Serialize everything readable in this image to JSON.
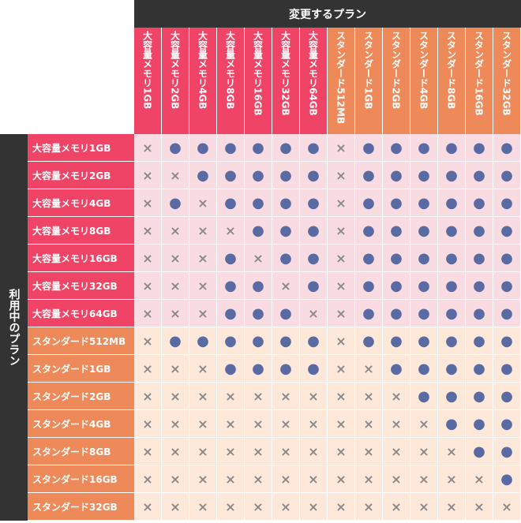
{
  "header": {
    "title": "変更するプラン",
    "side_title": "利用中のプラン"
  },
  "columns": [
    "大容量メモリ1GB",
    "大容量メモリ2GB",
    "大容量メモリ4GB",
    "大容量メモリ8GB",
    "大容量メモリ16GB",
    "大容量メモリ32GB",
    "大容量メモリ64GB",
    "スタンダード512MB",
    "スタンダード1GB",
    "スタンダード2GB",
    "スタンダード4GB",
    "スタンダード8GB",
    "スタンダード16GB",
    "スタンダード32GB"
  ],
  "rows": [
    {
      "label": "大容量メモリ1GB",
      "cells": [
        "×",
        "●",
        "●",
        "●",
        "●",
        "●",
        "●",
        "×",
        "●",
        "●",
        "●",
        "●",
        "●",
        "●"
      ]
    },
    {
      "label": "大容量メモリ2GB",
      "cells": [
        "×",
        "×",
        "●",
        "●",
        "●",
        "●",
        "●",
        "×",
        "●",
        "●",
        "●",
        "●",
        "●",
        "●"
      ]
    },
    {
      "label": "大容量メモリ4GB",
      "cells": [
        "×",
        "●",
        "×",
        "●",
        "●",
        "●",
        "●",
        "×",
        "●",
        "●",
        "●",
        "●",
        "●",
        "●"
      ]
    },
    {
      "label": "大容量メモリ8GB",
      "cells": [
        "×",
        "×",
        "×",
        "×",
        "●",
        "●",
        "●",
        "×",
        "●",
        "●",
        "●",
        "●",
        "●",
        "●"
      ]
    },
    {
      "label": "大容量メモリ16GB",
      "cells": [
        "×",
        "×",
        "×",
        "●",
        "×",
        "●",
        "●",
        "×",
        "●",
        "●",
        "●",
        "●",
        "●",
        "●"
      ]
    },
    {
      "label": "大容量メモリ32GB",
      "cells": [
        "×",
        "×",
        "×",
        "●",
        "●",
        "×",
        "●",
        "×",
        "●",
        "●",
        "●",
        "●",
        "●",
        "●"
      ]
    },
    {
      "label": "大容量メモリ64GB",
      "cells": [
        "×",
        "×",
        "×",
        "●",
        "●",
        "●",
        "×",
        "×",
        "●",
        "●",
        "●",
        "●",
        "●",
        "●"
      ]
    },
    {
      "label": "スタンダード512MB",
      "cells": [
        "×",
        "●",
        "●",
        "●",
        "●",
        "●",
        "●",
        "×",
        "●",
        "●",
        "●",
        "●",
        "●",
        "●"
      ]
    },
    {
      "label": "スタンダード1GB",
      "cells": [
        "×",
        "×",
        "×",
        "●",
        "●",
        "●",
        "●",
        "×",
        "×",
        "●",
        "●",
        "●",
        "●",
        "●"
      ]
    },
    {
      "label": "スタンダード2GB",
      "cells": [
        "×",
        "×",
        "×",
        "×",
        "×",
        "×",
        "×",
        "×",
        "×",
        "×",
        "●",
        "●",
        "●",
        "●"
      ]
    },
    {
      "label": "スタンダード4GB",
      "cells": [
        "×",
        "×",
        "×",
        "×",
        "×",
        "×",
        "×",
        "×",
        "×",
        "×",
        "×",
        "●",
        "●",
        "●"
      ]
    },
    {
      "label": "スタンダード8GB",
      "cells": [
        "×",
        "×",
        "×",
        "×",
        "×",
        "×",
        "×",
        "×",
        "×",
        "×",
        "×",
        "×",
        "●",
        "●"
      ]
    },
    {
      "label": "スタンダード16GB",
      "cells": [
        "×",
        "×",
        "×",
        "×",
        "×",
        "×",
        "×",
        "×",
        "×",
        "×",
        "×",
        "×",
        "×",
        "●"
      ]
    },
    {
      "label": "スタンダード32GB",
      "cells": [
        "×",
        "×",
        "×",
        "×",
        "×",
        "×",
        "×",
        "×",
        "×",
        "×",
        "×",
        "×",
        "×",
        "×"
      ]
    }
  ]
}
